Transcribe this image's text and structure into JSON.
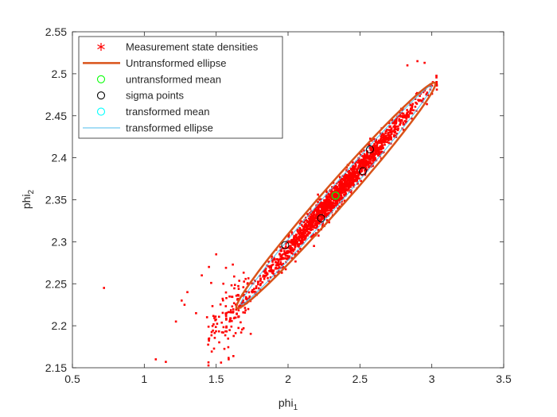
{
  "chart_data": {
    "type": "scatter",
    "title": "",
    "xlabel": "phi",
    "xlabel_sub": "1",
    "ylabel": "phi",
    "ylabel_sub": "2",
    "xlim": [
      0.5,
      3.5
    ],
    "ylim": [
      2.15,
      2.55
    ],
    "xticks": [
      0.5,
      1,
      1.5,
      2,
      2.5,
      3,
      3.5
    ],
    "yticks": [
      2.15,
      2.2,
      2.25,
      2.3,
      2.35,
      2.4,
      2.45,
      2.5,
      2.55
    ],
    "grid": false,
    "legend_position": "top-left",
    "legend": [
      {
        "label": "Measurement state densities",
        "marker": "asterisk",
        "color": "#ff0000"
      },
      {
        "label": "Untransformed ellipse",
        "marker": "line",
        "color": "#d95319"
      },
      {
        "label": "untransformed mean",
        "marker": "circle",
        "color": "#00ff00"
      },
      {
        "label": "sigma points",
        "marker": "circle",
        "color": "#000000"
      },
      {
        "label": "transformed mean",
        "marker": "circle",
        "color": "#00ffff"
      },
      {
        "label": "transformed ellipse",
        "marker": "line",
        "color": "#4dbeee"
      }
    ],
    "untransformed_ellipse": {
      "center": [
        2.33,
        2.355
      ],
      "axis_end_points": [
        [
          1.64,
          2.222
        ],
        [
          3.025,
          2.488
        ]
      ],
      "minor_half_width": 0.02,
      "color": "#d95319"
    },
    "transformed_ellipse": {
      "center": [
        2.33,
        2.355
      ],
      "axis_end_points": [
        [
          1.67,
          2.226
        ],
        [
          3.0,
          2.485
        ]
      ],
      "minor_half_width": 0.014,
      "color": "#4dbeee"
    },
    "untransformed_mean": {
      "x": 2.33,
      "y": 2.355,
      "color": "#00ff00"
    },
    "transformed_mean": {
      "x": 2.33,
      "y": 2.355,
      "color": "#00ffff"
    },
    "sigma_points": [
      {
        "x": 1.98,
        "y": 2.296
      },
      {
        "x": 2.23,
        "y": 2.328
      },
      {
        "x": 2.33,
        "y": 2.355
      },
      {
        "x": 2.52,
        "y": 2.384
      },
      {
        "x": 2.57,
        "y": 2.41
      }
    ],
    "measurement_densities": {
      "color": "#ff0000",
      "outliers": [
        [
          0.72,
          2.245
        ],
        [
          1.08,
          2.16
        ],
        [
          1.15,
          2.157
        ],
        [
          1.22,
          2.205
        ],
        [
          1.26,
          2.23
        ],
        [
          1.28,
          2.225
        ],
        [
          1.3,
          2.24
        ],
        [
          1.36,
          2.215
        ],
        [
          1.4,
          2.26
        ],
        [
          1.45,
          2.27
        ],
        [
          1.5,
          2.285
        ],
        [
          1.55,
          2.25
        ],
        [
          2.83,
          2.51
        ],
        [
          2.9,
          2.515
        ],
        [
          2.95,
          2.513
        ]
      ]
    }
  }
}
